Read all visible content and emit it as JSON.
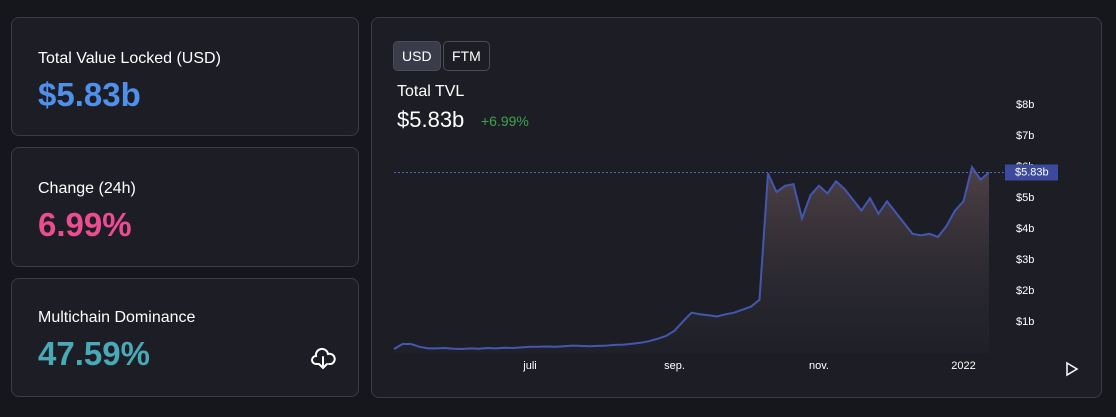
{
  "stats": [
    {
      "label": "Total Value Locked (USD)",
      "value": "$5.83b"
    },
    {
      "label": "Change (24h)",
      "value": "6.99%"
    },
    {
      "label": "Multichain Dominance",
      "value": "47.59%"
    }
  ],
  "toggles": [
    "USD",
    "FTM"
  ],
  "chart_data": {
    "type": "area",
    "title": "Total TVL",
    "headline": "$5.83b",
    "change": "+6.99%",
    "color": "#4357b0",
    "categories": [
      null,
      null,
      null,
      null,
      null,
      null,
      null,
      null,
      null,
      null,
      null,
      null,
      null,
      null,
      null,
      null,
      "juli",
      null,
      null,
      null,
      null,
      null,
      null,
      null,
      null,
      null,
      null,
      null,
      null,
      null,
      null,
      null,
      null,
      "sep.",
      null,
      null,
      null,
      null,
      null,
      null,
      null,
      null,
      null,
      null,
      null,
      null,
      null,
      null,
      null,
      null,
      "nov.",
      null,
      null,
      null,
      null,
      null,
      null,
      null,
      null,
      null,
      null,
      null,
      null,
      null,
      null,
      null,
      null,
      "2022",
      null,
      null,
      null
    ],
    "values": [
      0.13,
      0.29,
      0.29,
      0.2,
      0.15,
      0.15,
      0.16,
      0.14,
      0.13,
      0.15,
      0.14,
      0.16,
      0.15,
      0.17,
      0.16,
      0.18,
      0.2,
      0.2,
      0.21,
      0.2,
      0.22,
      0.24,
      0.23,
      0.22,
      0.23,
      0.24,
      0.26,
      0.27,
      0.3,
      0.33,
      0.38,
      0.46,
      0.55,
      0.72,
      1.02,
      1.3,
      1.25,
      1.22,
      1.18,
      1.25,
      1.3,
      1.4,
      1.5,
      1.72,
      5.8,
      5.2,
      5.4,
      5.45,
      4.35,
      5.1,
      5.4,
      5.15,
      5.55,
      5.3,
      4.95,
      4.6,
      5.0,
      4.5,
      4.9,
      4.55,
      4.2,
      3.85,
      3.8,
      3.85,
      3.75,
      4.1,
      4.6,
      4.9,
      6.0,
      5.6,
      5.83
    ],
    "ylim": [
      0,
      8.3
    ],
    "yticks": [
      {
        "value": 1,
        "label": "$1b"
      },
      {
        "value": 2,
        "label": "$2b"
      },
      {
        "value": 3,
        "label": "$3b"
      },
      {
        "value": 4,
        "label": "$4b"
      },
      {
        "value": 5,
        "label": "$5b"
      },
      {
        "value": 6,
        "label": "$6b"
      },
      {
        "value": 7,
        "label": "$7b"
      },
      {
        "value": 8,
        "label": "$8b"
      }
    ],
    "price_line": {
      "value": 5.83,
      "label": "$5.83b"
    }
  }
}
